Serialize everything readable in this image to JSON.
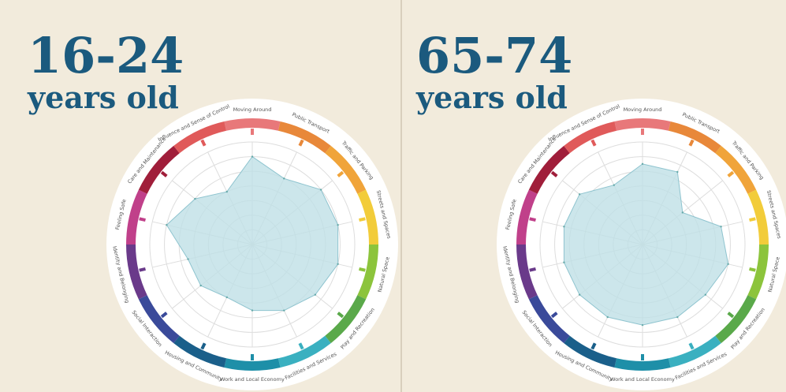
{
  "chart_data": [
    {
      "type": "radar",
      "title": "16-24",
      "subtitle": "years old",
      "categories": [
        "Moving Around",
        "Public Transport",
        "Traffic and Parking",
        "Streets and Spaces",
        "Natural Space",
        "Play and Recreation",
        "Facilities and Services",
        "Work and Local Economy",
        "Housing and Community",
        "Social Interaction",
        "Identity and Belonging",
        "Feeling Safe",
        "Care and Maintenance",
        "Influence and Sense of Control"
      ],
      "values": [
        6,
        5,
        6,
        6,
        6,
        5.5,
        5,
        4.5,
        4,
        4.5,
        4.5,
        6,
        5,
        4
      ],
      "colors": [
        "#e8787a",
        "#e8883a",
        "#f0a43a",
        "#f2cc3a",
        "#8cc43c",
        "#5aa94a",
        "#3ab0c0",
        "#1e8fa8",
        "#1a5f8a",
        "#3a4a9a",
        "#6a3a8a",
        "#c0408a",
        "#a01e3a",
        "#e05a5a"
      ],
      "ylim": [
        0,
        7
      ],
      "yticks": [
        1,
        2,
        3,
        4,
        5,
        6,
        7
      ],
      "grid": true
    },
    {
      "type": "radar",
      "title": "65-74",
      "subtitle": "years old",
      "categories": [
        "Moving Around",
        "Public Transport",
        "Traffic and Parking",
        "Streets and Spaces",
        "Natural Space",
        "Play and Recreation",
        "Facilities and Services",
        "Work and Local Economy",
        "Housing and Community",
        "Social Interaction",
        "Identity and Belonging",
        "Feeling Safe",
        "Care and Maintenance",
        "Influence and Sense of Control"
      ],
      "values": [
        5.5,
        5.5,
        3.5,
        5.5,
        6,
        5.5,
        5.5,
        5.5,
        5.5,
        5.5,
        5.5,
        5.5,
        5.5,
        4.5
      ],
      "colors": [
        "#e8787a",
        "#e8883a",
        "#f0a43a",
        "#f2cc3a",
        "#8cc43c",
        "#5aa94a",
        "#3ab0c0",
        "#1e8fa8",
        "#1a5f8a",
        "#3a4a9a",
        "#6a3a8a",
        "#c0408a",
        "#a01e3a",
        "#e05a5a"
      ],
      "ylim": [
        0,
        7
      ],
      "yticks": [
        1,
        2,
        3,
        4,
        5,
        6,
        7
      ],
      "grid": true
    }
  ]
}
